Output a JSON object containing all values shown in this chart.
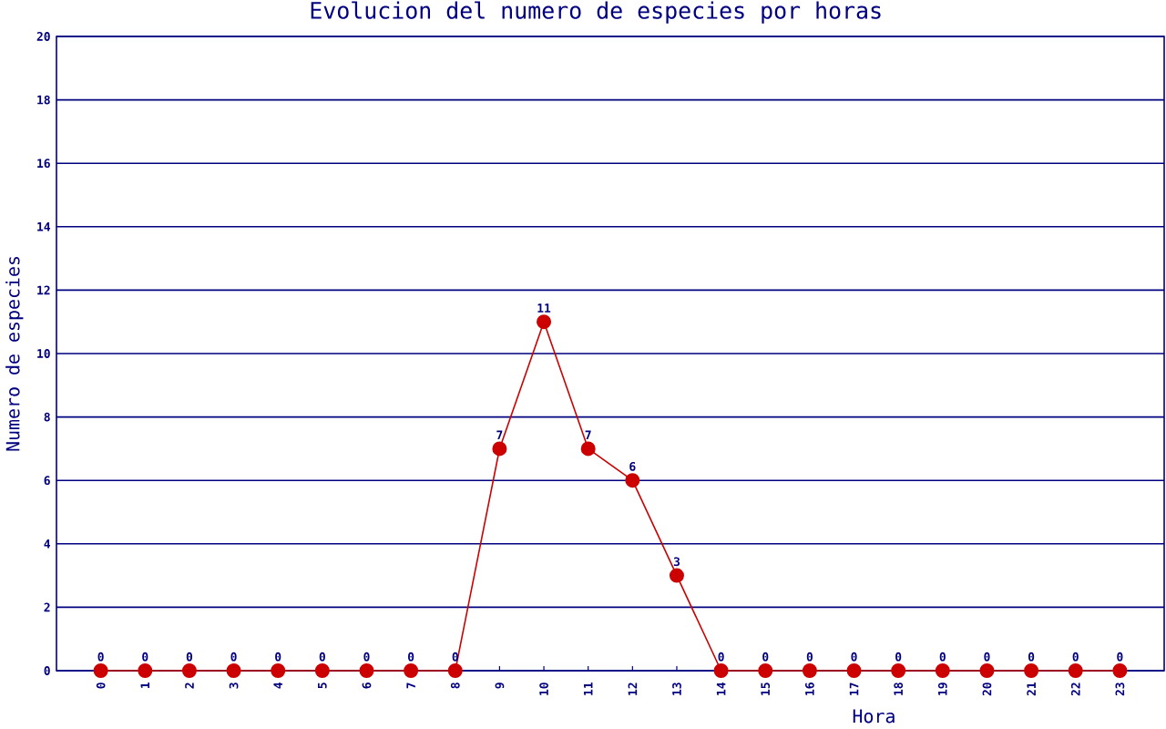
{
  "chart_data": {
    "type": "line",
    "title": "Evolucion del numero de especies por horas",
    "xlabel": "Hora",
    "ylabel": "Numero de especies",
    "categories": [
      "0",
      "1",
      "2",
      "3",
      "4",
      "5",
      "6",
      "7",
      "8",
      "9",
      "10",
      "11",
      "12",
      "13",
      "14",
      "15",
      "16",
      "17",
      "18",
      "19",
      "20",
      "21",
      "22",
      "23"
    ],
    "values": [
      0,
      0,
      0,
      0,
      0,
      0,
      0,
      0,
      0,
      7,
      11,
      7,
      6,
      3,
      0,
      0,
      0,
      0,
      0,
      0,
      0,
      0,
      0,
      0
    ],
    "color": "#cc0000",
    "ylim": [
      0,
      20
    ],
    "yticks": [
      0,
      2,
      4,
      6,
      8,
      10,
      12,
      14,
      16,
      18,
      20
    ],
    "grid": "y",
    "marker": "circle",
    "data_labels": true
  }
}
